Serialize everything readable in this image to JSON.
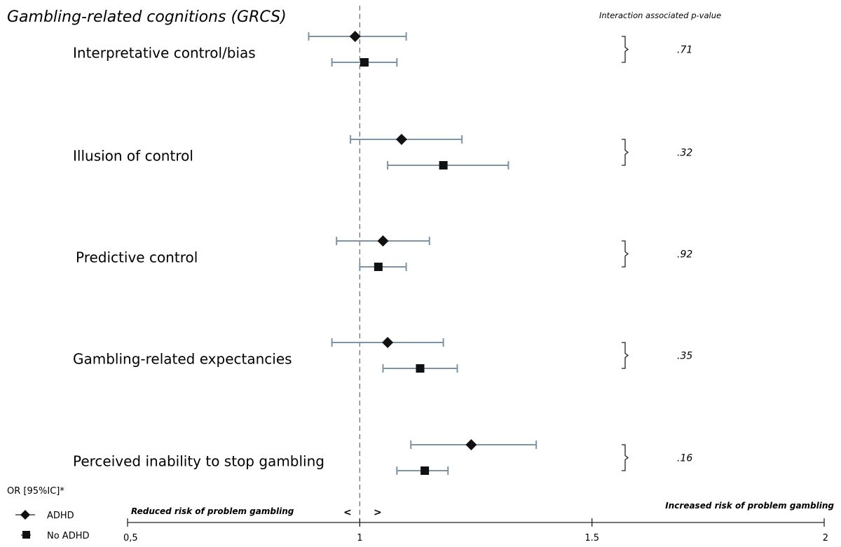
{
  "chart_data": {
    "type": "forest",
    "title": "Gambling-related cognitions (GRCS)",
    "pvalue_header": "Interaction associated p-value",
    "reference_line": 1,
    "xlim": [
      0.5,
      2
    ],
    "x_ticks": [
      {
        "value": 0.5,
        "label": "0,5"
      },
      {
        "value": 1,
        "label": "1"
      },
      {
        "value": 1.5,
        "label": "1.5"
      },
      {
        "value": 2,
        "label": "2"
      }
    ],
    "left_annotation": "Reduced risk of problem gambling",
    "right_annotation": "Increased risk of problem gambling",
    "left_arrow": "<",
    "right_arrow": ">",
    "legend": {
      "title": "OR [95%IC]*",
      "items": [
        {
          "name": "ADHD",
          "marker": "diamond"
        },
        {
          "name": "No ADHD",
          "marker": "square"
        }
      ]
    },
    "error_bar_color": "#7d93a6",
    "rows": [
      {
        "label": "Interpretative control/bias",
        "p_value": ".71",
        "series": [
          {
            "name": "ADHD",
            "or": 0.99,
            "ci": [
              0.89,
              1.1
            ]
          },
          {
            "name": "No ADHD",
            "or": 1.01,
            "ci": [
              0.94,
              1.08
            ]
          }
        ]
      },
      {
        "label": "Illusion of control",
        "p_value": ".32",
        "series": [
          {
            "name": "ADHD",
            "or": 1.09,
            "ci": [
              0.98,
              1.22
            ]
          },
          {
            "name": "No ADHD",
            "or": 1.18,
            "ci": [
              1.06,
              1.32
            ]
          }
        ]
      },
      {
        "label": "Predictive control",
        "p_value": ".92",
        "series": [
          {
            "name": "ADHD",
            "or": 1.05,
            "ci": [
              0.95,
              1.15
            ]
          },
          {
            "name": "No ADHD",
            "or": 1.04,
            "ci": [
              1.0,
              1.1
            ]
          }
        ]
      },
      {
        "label": "Gambling-related expectancies",
        "p_value": ".35",
        "series": [
          {
            "name": "ADHD",
            "or": 1.06,
            "ci": [
              0.94,
              1.18
            ]
          },
          {
            "name": "No ADHD",
            "or": 1.13,
            "ci": [
              1.05,
              1.21
            ]
          }
        ]
      },
      {
        "label": "Perceived inability to stop gambling",
        "p_value": ".16",
        "series": [
          {
            "name": "ADHD",
            "or": 1.24,
            "ci": [
              1.11,
              1.38
            ]
          },
          {
            "name": "No ADHD",
            "or": 1.14,
            "ci": [
              1.08,
              1.19
            ]
          }
        ]
      }
    ]
  }
}
